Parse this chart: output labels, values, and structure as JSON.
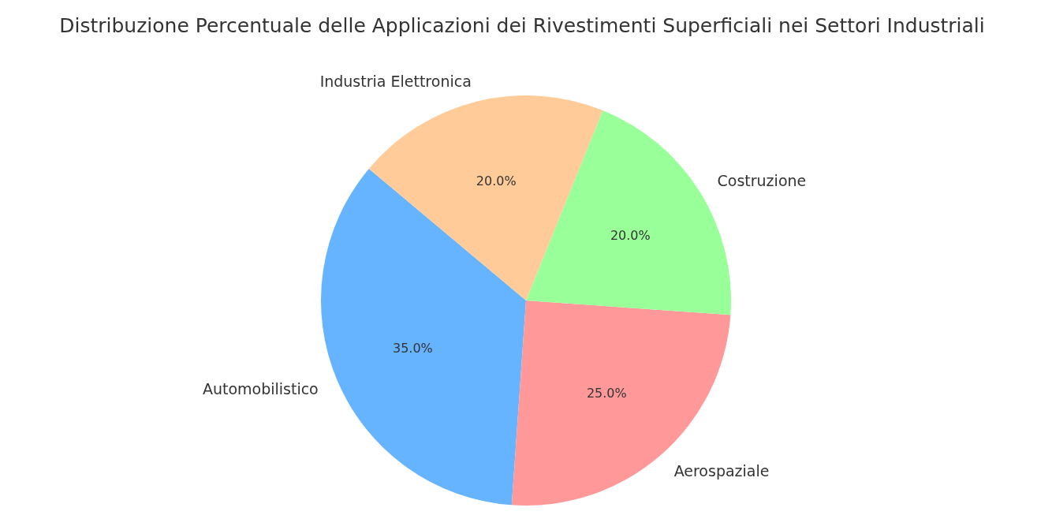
{
  "chart_data": {
    "type": "pie",
    "title": "Distribuzione Percentuale delle Applicazioni dei Rivestimenti Superficiali nei Settori Industriali",
    "categories": [
      "Automobilistico",
      "Aerospaziale",
      "Costruzione",
      "Industria Elettronica"
    ],
    "values": [
      35,
      25,
      20,
      20
    ],
    "colors": [
      "#66b3ff",
      "#ff9999",
      "#99ff99",
      "#ffcc99"
    ],
    "value_labels": [
      "35.0%",
      "25.0%",
      "20.0%",
      "20.0%"
    ],
    "legend": false
  }
}
